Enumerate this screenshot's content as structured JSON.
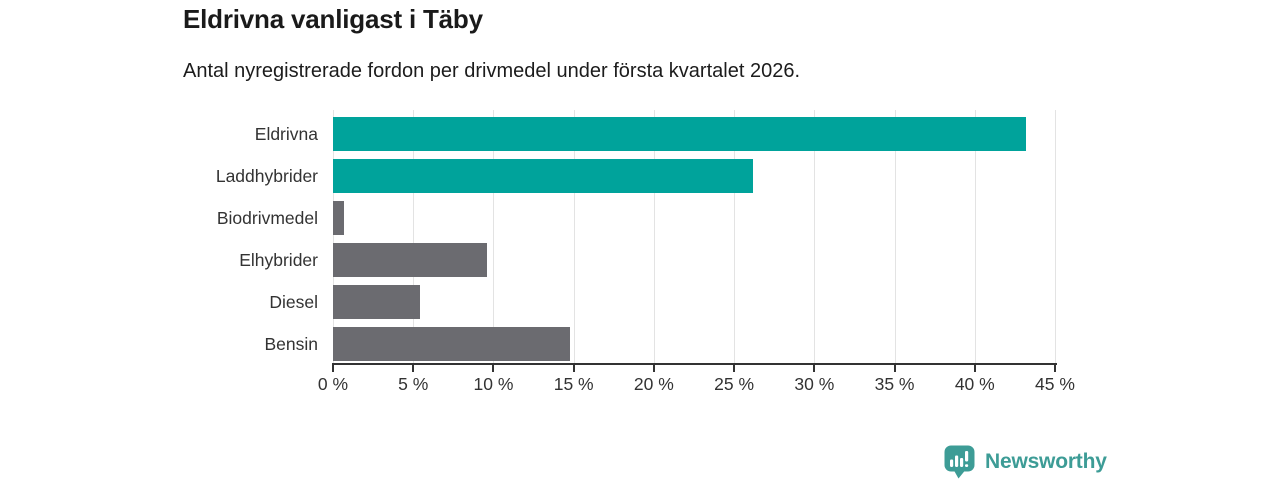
{
  "header": {
    "title": "Eldrivna vanligast i Täby",
    "subtitle": "Antal nyregistrerade fordon per drivmedel under första kvartalet 2026."
  },
  "chart_data": {
    "type": "bar",
    "orientation": "horizontal",
    "title": "Eldrivna vanligast i Täby",
    "subtitle": "Antal nyregistrerade fordon per drivmedel under första kvartalet 2026.",
    "categories": [
      "Eldrivna",
      "Laddhybrider",
      "Biodrivmedel",
      "Elhybrider",
      "Diesel",
      "Bensin"
    ],
    "values": [
      43.2,
      26.2,
      0.7,
      9.6,
      5.4,
      14.8
    ],
    "value_unit": "%",
    "xlim": [
      0,
      45
    ],
    "x_ticks": [
      0,
      5,
      10,
      15,
      20,
      25,
      30,
      35,
      40,
      45
    ],
    "x_tick_labels": [
      "0 %",
      "5 %",
      "10 %",
      "15 %",
      "20 %",
      "25 %",
      "30 %",
      "35 %",
      "40 %",
      "45 %"
    ],
    "bar_colors": [
      "#00a39b",
      "#00a39b",
      "#6b6b70",
      "#6b6b70",
      "#6b6b70",
      "#6b6b70"
    ],
    "grid": true,
    "legend": "none",
    "ylabel": "",
    "xlabel": ""
  },
  "branding": {
    "logo_text": "Newsworthy",
    "logo_color": "#3d9c96",
    "logo_icon": "bar-chart-speech-bubble-icon"
  },
  "colors": {
    "background": "#ffffff",
    "highlight_bar": "#00a39b",
    "neutral_bar": "#6b6b70",
    "axis": "#333333",
    "gridline": "#e3e3e3",
    "title_text": "#1a1a1a",
    "tick_text": "#333333"
  }
}
